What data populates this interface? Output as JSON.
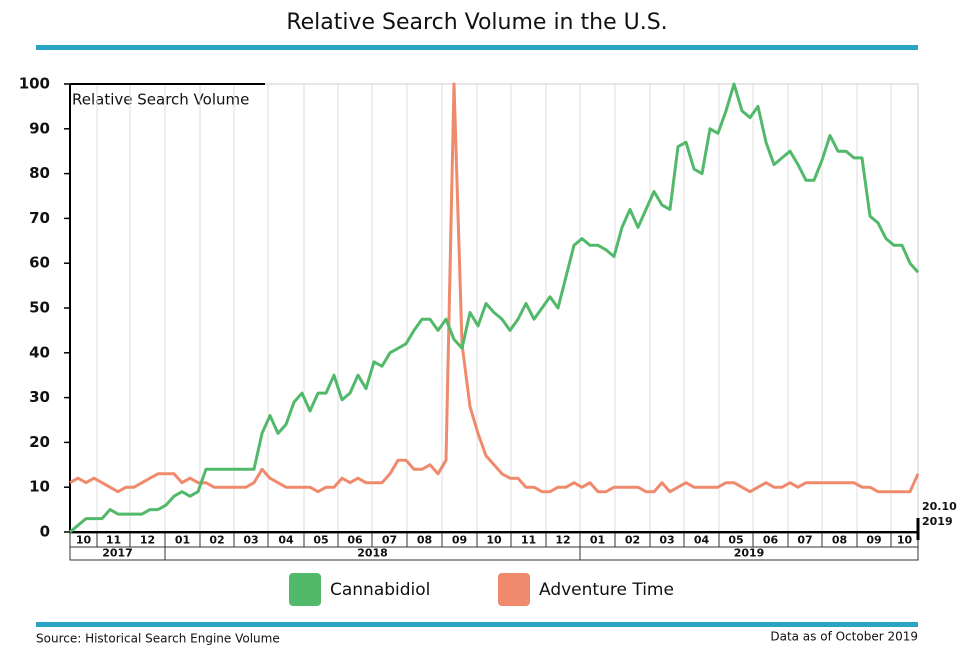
{
  "chart_data": {
    "type": "line",
    "title": "Relative Search Volume in the U.S.",
    "y_label": "Relative Search Volume",
    "source": "Source: Historical Search Engine Volume",
    "note": "Data as of October 2019",
    "end_date": {
      "day": "20.10",
      "year": "2019"
    },
    "years": [
      {
        "year": "2017",
        "months": [
          "10",
          "11",
          "12"
        ]
      },
      {
        "year": "2018",
        "months": [
          "01",
          "02",
          "03",
          "04",
          "05",
          "06",
          "07",
          "08",
          "09",
          "10",
          "11",
          "12"
        ]
      },
      {
        "year": "2019",
        "months": [
          "01",
          "02",
          "03",
          "04",
          "05",
          "06",
          "07",
          "08",
          "09",
          "10"
        ]
      }
    ],
    "ylim": [
      0,
      100
    ],
    "yticks": [
      0,
      10,
      20,
      30,
      40,
      50,
      60,
      70,
      80,
      90,
      100
    ],
    "grid": true,
    "legend": "bottom",
    "series": [
      {
        "name": "Cannabidiol",
        "color": "#52b96b",
        "values": [
          0,
          1.5,
          3,
          3,
          3,
          5,
          4,
          4,
          4,
          4,
          5,
          5,
          6,
          8,
          9,
          8,
          9,
          14,
          14,
          14,
          14,
          14,
          14,
          14,
          22,
          26,
          22,
          24,
          29,
          31,
          27,
          31,
          31,
          35,
          29.5,
          31,
          35,
          32,
          38,
          37,
          40,
          41,
          42,
          45,
          47.5,
          47.5,
          45,
          47.5,
          43,
          41,
          49,
          46,
          51,
          49,
          47.5,
          45,
          47.5,
          51,
          47.5,
          50,
          52.5,
          50,
          57,
          64,
          65.5,
          64,
          64,
          63,
          61.5,
          68,
          72,
          68,
          72,
          76,
          73,
          72,
          86,
          87,
          81,
          80,
          90,
          89,
          94,
          100,
          94,
          92.5,
          95,
          87,
          82,
          83.5,
          85,
          82,
          78.5,
          78.5,
          83,
          88.5,
          85,
          85,
          83.5,
          83.5,
          70.5,
          69,
          65.5,
          64,
          64,
          60,
          58
        ]
      },
      {
        "name": "Adventure Time",
        "color": "#ef8a6c",
        "values": [
          11,
          12,
          11,
          12,
          11,
          10,
          9,
          10,
          10,
          11,
          12,
          13,
          13,
          13,
          11,
          12,
          11,
          11,
          10,
          10,
          10,
          10,
          10,
          11,
          14,
          12,
          11,
          10,
          10,
          10,
          10,
          9,
          10,
          10,
          12,
          11,
          12,
          11,
          11,
          11,
          13,
          16,
          16,
          14,
          14,
          15,
          13,
          16,
          100,
          42,
          28,
          22,
          17,
          15,
          13,
          12,
          12,
          10,
          10,
          9,
          9,
          10,
          10,
          11,
          10,
          11,
          9,
          9,
          10,
          10,
          10,
          10,
          9,
          9,
          11,
          9,
          10,
          11,
          10,
          10,
          10,
          10,
          11,
          11,
          10,
          9,
          10,
          11,
          10,
          10,
          11,
          10,
          11,
          11,
          11,
          11,
          11,
          11,
          11,
          10,
          10,
          9,
          9,
          9,
          9,
          9,
          13
        ]
      }
    ]
  }
}
